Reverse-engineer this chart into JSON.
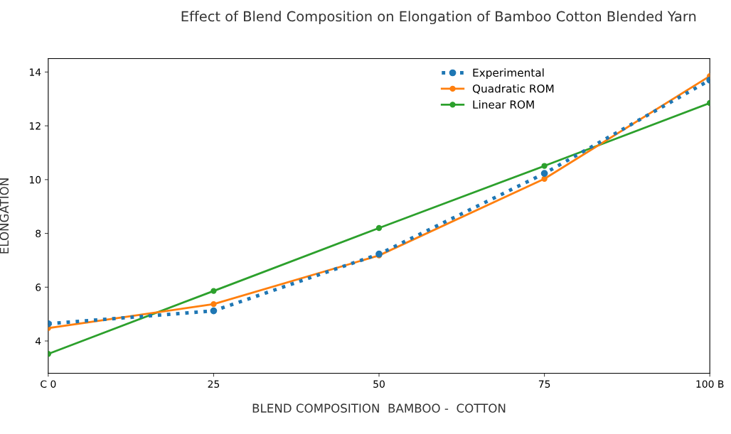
{
  "chart_data": {
    "type": "line",
    "title": "Effect of Blend Composition on Elongation of Bamboo Cotton Blended Yarn",
    "xlabel": "BLEND COMPOSITION  BAMBOO -  COTTON",
    "ylabel": "ELONGATION",
    "x": [
      0,
      25,
      50,
      75,
      100
    ],
    "series": [
      {
        "name": "Experimental",
        "color": "#1f77b4",
        "values": [
          4.64,
          5.12,
          7.23,
          10.23,
          13.7
        ],
        "line_style": "dotted"
      },
      {
        "name": "Quadratic ROM",
        "color": "#ff7f0e",
        "values": [
          4.48,
          5.37,
          7.18,
          10.03,
          13.85
        ],
        "line_style": "solid"
      },
      {
        "name": "Linear ROM",
        "color": "#2ca02c",
        "values": [
          3.52,
          5.86,
          8.2,
          10.51,
          12.85
        ],
        "line_style": "solid"
      }
    ],
    "xlim": [
      0,
      100
    ],
    "xticks": [
      {
        "value": 0,
        "label": "C 0"
      },
      25,
      50,
      75,
      {
        "value": 100,
        "label": "100 B"
      }
    ],
    "ylim": [
      2.8,
      14.5
    ],
    "yticks": [
      4,
      6,
      8,
      10,
      12,
      14
    ],
    "marker": "circle",
    "grid": false,
    "legend": "top right"
  }
}
